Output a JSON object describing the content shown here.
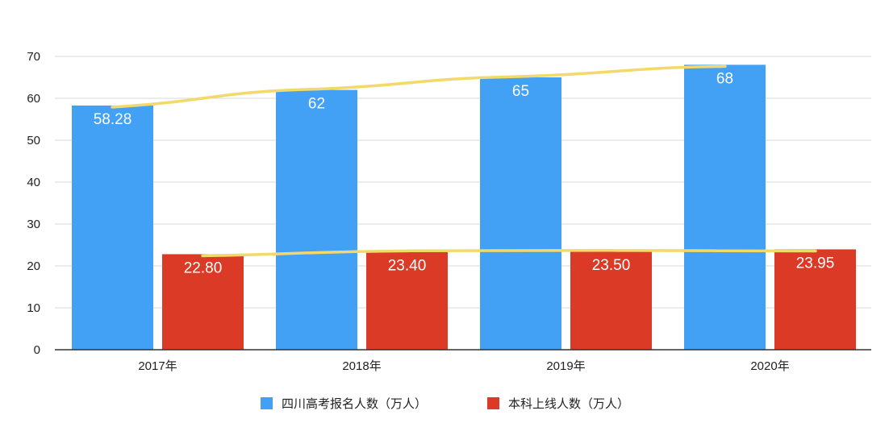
{
  "chart_data": {
    "type": "bar",
    "categories": [
      "2017年",
      "2018年",
      "2019年",
      "2020年"
    ],
    "series": [
      {
        "name": "四川高考报名人数（万人）",
        "values": [
          58.28,
          62,
          65,
          68
        ],
        "labels": [
          "58.28",
          "62",
          "65",
          "68"
        ],
        "color": "#42a0f5"
      },
      {
        "name": "本科上线人数（万人）",
        "values": [
          22.8,
          23.4,
          23.5,
          23.95
        ],
        "labels": [
          "22.80",
          "23.40",
          "23.50",
          "23.95"
        ],
        "color": "#da3a26"
      }
    ],
    "trendlines": [
      {
        "series": 0,
        "color": "#f2d96a"
      },
      {
        "series": 1,
        "color": "#f2d96a"
      }
    ],
    "yticks": [
      "0",
      "10",
      "20",
      "30",
      "40",
      "50",
      "60",
      "70"
    ],
    "ylim": [
      0,
      70
    ],
    "grid": true,
    "legend_position": "bottom",
    "title": "",
    "xlabel": "",
    "ylabel": ""
  }
}
